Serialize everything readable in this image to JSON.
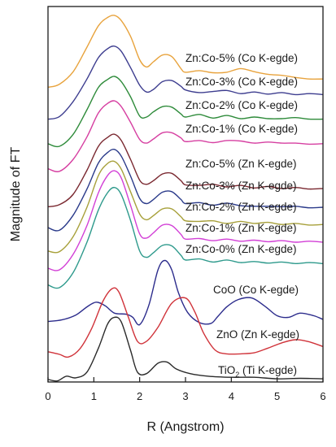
{
  "chart_data": {
    "type": "line",
    "xlabel": "R (Angstrom)",
    "ylabel": "Magnitude of FT",
    "xlim": [
      0,
      6
    ],
    "xticks": [
      "0",
      "1",
      "2",
      "3",
      "4",
      "5",
      "6"
    ],
    "grid": false,
    "legend": "labels placed next to each curve",
    "series": [
      {
        "name": "Zn:Co-5% (Co K-egde)",
        "color": "#e8a33d",
        "x": [
          0.0,
          0.25,
          0.55,
          0.85,
          1.1,
          1.3,
          1.45,
          1.6,
          1.8,
          2.0,
          2.15,
          2.3,
          2.5,
          2.7,
          2.9,
          3.0,
          3.3,
          3.6,
          3.9,
          4.2,
          4.5,
          4.8,
          5.1,
          5.4,
          5.7,
          6.0
        ],
        "y": [
          56.5,
          57.1,
          59.5,
          64.2,
          68.3,
          69.9,
          70.3,
          69.3,
          66.3,
          61.8,
          60.4,
          61.4,
          62.7,
          62.4,
          60.1,
          59.4,
          59.7,
          59.3,
          59.4,
          60.1,
          59.5,
          59.0,
          58.8,
          58.4,
          58.1,
          58.1
        ]
      },
      {
        "name": "Zn:Co-3% (Co K-egde)",
        "color": "#3d3d8f",
        "x": [
          0.0,
          0.25,
          0.55,
          0.85,
          1.1,
          1.3,
          1.45,
          1.6,
          1.8,
          2.0,
          2.15,
          2.3,
          2.5,
          2.7,
          2.9,
          3.0,
          3.3,
          3.6,
          3.9,
          4.2,
          4.5,
          4.8,
          5.1,
          5.4,
          5.7,
          6.0
        ],
        "y": [
          50.4,
          50.9,
          53.8,
          58.1,
          62.2,
          63.9,
          64.4,
          63.4,
          60.3,
          56.9,
          55.6,
          56.1,
          57.6,
          57.8,
          56.7,
          56.0,
          55.5,
          55.7,
          55.9,
          55.3,
          55.6,
          55.2,
          55.5,
          55.1,
          55.3,
          55.1
        ]
      },
      {
        "name": "Zn:Co-2% (Co K-egde)",
        "color": "#2e8b3a",
        "x": [
          0.0,
          0.25,
          0.55,
          0.85,
          1.1,
          1.3,
          1.45,
          1.6,
          1.8,
          2.0,
          2.15,
          2.3,
          2.5,
          2.7,
          2.9,
          3.0,
          3.3,
          3.6,
          3.9,
          4.2,
          4.5,
          4.8,
          5.1,
          5.4,
          5.7,
          6.0
        ],
        "y": [
          45.7,
          45.2,
          47.5,
          52.2,
          56.5,
          58.0,
          58.6,
          57.6,
          54.7,
          51.0,
          50.8,
          51.8,
          52.8,
          52.7,
          51.4,
          50.8,
          51.3,
          50.6,
          51.1,
          50.5,
          50.8,
          50.5,
          50.5,
          50.7,
          50.4,
          50.4
        ]
      },
      {
        "name": "Zn:Co-1% (Co K-egde)",
        "color": "#d63fa1",
        "x": [
          0.0,
          0.25,
          0.55,
          0.85,
          1.1,
          1.3,
          1.45,
          1.6,
          1.8,
          2.0,
          2.15,
          2.3,
          2.5,
          2.7,
          2.9,
          3.0,
          3.3,
          3.6,
          3.9,
          4.2,
          4.5,
          4.8,
          5.1,
          5.4,
          5.7,
          6.0
        ],
        "y": [
          40.9,
          40.4,
          42.7,
          47.0,
          51.6,
          53.4,
          53.9,
          52.8,
          49.8,
          46.5,
          45.8,
          46.6,
          47.8,
          47.8,
          46.8,
          46.1,
          46.3,
          45.9,
          46.3,
          46.2,
          45.8,
          46.0,
          45.8,
          45.8,
          45.6,
          45.7
        ]
      },
      {
        "name": "Zn:Co-5% (Zn K-egde)",
        "color": "#7a2830",
        "x": [
          0.0,
          0.25,
          0.55,
          0.85,
          1.1,
          1.3,
          1.45,
          1.6,
          1.8,
          2.0,
          2.15,
          2.3,
          2.5,
          2.7,
          2.9,
          3.0,
          3.3,
          3.6,
          3.9,
          4.2,
          4.5,
          4.8,
          5.1,
          5.4,
          5.7,
          6.0
        ],
        "y": [
          33.6,
          34.0,
          36.0,
          40.6,
          45.2,
          46.9,
          47.5,
          46.3,
          42.7,
          38.7,
          37.9,
          38.6,
          39.9,
          40.0,
          38.6,
          37.8,
          37.7,
          37.9,
          37.4,
          37.7,
          37.2,
          37.5,
          37.1,
          37.3,
          37.0,
          37.1
        ]
      },
      {
        "name": "Zn:Co-3% (Zn K-egde)",
        "color": "#2a3a8a",
        "x": [
          0.0,
          0.25,
          0.55,
          0.85,
          1.1,
          1.3,
          1.45,
          1.6,
          1.8,
          2.0,
          2.15,
          2.3,
          2.5,
          2.7,
          2.9,
          3.0,
          3.3,
          3.6,
          3.9,
          4.2,
          4.5,
          4.8,
          5.1,
          5.4,
          5.7,
          6.0
        ],
        "y": [
          29.6,
          29.1,
          32.0,
          37.0,
          42.0,
          44.0,
          44.6,
          43.3,
          39.5,
          35.2,
          34.2,
          35.0,
          36.4,
          36.5,
          35.0,
          34.2,
          34.4,
          33.9,
          34.3,
          33.8,
          33.7,
          33.7,
          33.6,
          33.7,
          33.4,
          33.5
        ]
      },
      {
        "name": "Zn:Co-2% (Zn K-egde)",
        "color": "#a7a03a",
        "x": [
          0.0,
          0.25,
          0.55,
          0.85,
          1.1,
          1.3,
          1.45,
          1.6,
          1.8,
          2.0,
          2.15,
          2.3,
          2.5,
          2.7,
          2.9,
          3.0,
          3.3,
          3.6,
          3.9,
          4.2,
          4.5,
          4.8,
          5.1,
          5.4,
          5.7,
          6.0
        ],
        "y": [
          25.1,
          25.0,
          27.9,
          33.5,
          39.6,
          41.9,
          42.3,
          40.8,
          36.5,
          32.2,
          31.1,
          31.9,
          33.2,
          33.2,
          31.7,
          30.9,
          30.8,
          30.9,
          30.4,
          30.8,
          30.4,
          30.6,
          30.2,
          30.4,
          30.1,
          30.2
        ]
      },
      {
        "name": "Zn:Co-1% (Zn K-egde)",
        "color": "#d23fd6",
        "x": [
          0.0,
          0.25,
          0.55,
          0.85,
          1.1,
          1.3,
          1.45,
          1.6,
          1.8,
          2.0,
          2.15,
          2.3,
          2.5,
          2.7,
          2.9,
          3.0,
          3.3,
          3.6,
          3.9,
          4.2,
          4.5,
          4.8,
          5.1,
          5.4,
          5.7,
          6.0
        ],
        "y": [
          21.8,
          21.5,
          24.5,
          30.0,
          36.3,
          39.6,
          40.5,
          39.1,
          33.9,
          28.4,
          27.6,
          28.6,
          30.1,
          30.0,
          28.3,
          27.4,
          27.5,
          27.1,
          27.4,
          27.0,
          27.2,
          26.9,
          27.1,
          26.8,
          27.0,
          26.8
        ]
      },
      {
        "name": "Zn:Co-0% (Zn K-egde)",
        "color": "#2e9a8c",
        "x": [
          0.0,
          0.25,
          0.55,
          0.85,
          1.1,
          1.3,
          1.45,
          1.6,
          1.8,
          2.0,
          2.15,
          2.3,
          2.5,
          2.7,
          2.9,
          3.0,
          3.3,
          3.6,
          3.9,
          4.2,
          4.5,
          4.8,
          5.1,
          5.4,
          5.7,
          6.0
        ],
        "y": [
          18.6,
          18.1,
          21.0,
          26.8,
          33.0,
          36.3,
          37.3,
          35.9,
          31.0,
          25.1,
          23.9,
          24.8,
          26.2,
          26.1,
          24.3,
          23.4,
          23.6,
          23.0,
          23.4,
          22.9,
          23.1,
          22.8,
          23.0,
          22.7,
          22.9,
          22.7
        ]
      },
      {
        "name": "CoO (Co K-egde)",
        "color": "#2c2c8c",
        "x": [
          0.0,
          0.3,
          0.6,
          0.85,
          1.05,
          1.25,
          1.45,
          1.7,
          1.85,
          2.0,
          2.2,
          2.4,
          2.55,
          2.7,
          2.85,
          3.05,
          3.3,
          3.55,
          3.7,
          3.9,
          4.15,
          4.45,
          4.75,
          5.0,
          5.25,
          5.5,
          5.8,
          6.0
        ],
        "y": [
          11.6,
          11.9,
          12.8,
          14.4,
          15.3,
          14.6,
          13.2,
          13.0,
          12.4,
          11.0,
          14.7,
          21.5,
          23.3,
          21.5,
          17.0,
          13.3,
          11.4,
          11.2,
          12.5,
          14.4,
          15.8,
          16.1,
          14.4,
          12.7,
          12.4,
          13.2,
          12.7,
          12.0
        ]
      },
      {
        "name": "ZnO (Zn K-egde)",
        "color": "#d0333a",
        "x": [
          0.0,
          0.25,
          0.45,
          0.7,
          0.95,
          1.2,
          1.4,
          1.55,
          1.75,
          1.95,
          2.15,
          2.4,
          2.7,
          3.0,
          3.2,
          3.4,
          3.65,
          3.9,
          4.2,
          4.5,
          4.8,
          5.1,
          5.4,
          5.7,
          6.0
        ],
        "y": [
          5.8,
          5.3,
          4.8,
          6.4,
          10.2,
          15.5,
          17.9,
          17.2,
          12.5,
          7.8,
          7.8,
          10.5,
          15.1,
          16.1,
          13.5,
          9.3,
          6.1,
          5.4,
          5.4,
          5.6,
          6.5,
          7.5,
          8.1,
          7.7,
          6.8
        ]
      },
      {
        "name": "TiO2 (Ti K-egde)",
        "color": "#2a2a2a",
        "x": [
          0.0,
          0.2,
          0.4,
          0.6,
          0.85,
          1.1,
          1.3,
          1.45,
          1.6,
          1.8,
          1.95,
          2.15,
          2.4,
          2.6,
          2.8,
          3.1,
          3.5,
          4.0,
          4.5,
          5.0,
          5.5,
          6.0
        ],
        "y": [
          0.5,
          0.2,
          1.1,
          0.8,
          1.9,
          6.5,
          11.1,
          12.4,
          11.5,
          6.1,
          1.9,
          1.6,
          3.6,
          3.8,
          2.5,
          1.6,
          1.1,
          0.9,
          0.9,
          0.6,
          0.7,
          0.6
        ]
      }
    ],
    "labels": [
      {
        "text": "Zn:Co-5% (Co K-egde)"
      },
      {
        "text": "Zn:Co-3% (Co K-egde)"
      },
      {
        "text": "Zn:Co-2% (Co K-egde)"
      },
      {
        "text": "Zn:Co-1% (Co K-egde)"
      },
      {
        "text": "Zn:Co-5% (Zn K-egde)"
      },
      {
        "text": "Zn:Co-3% (Zn K-egde)"
      },
      {
        "text": "Zn:Co-2% (Zn K-egde)"
      },
      {
        "text": "Zn:Co-1% (Zn K-egde)"
      },
      {
        "text": "Zn:Co-0% (Zn K-egde)"
      },
      {
        "text": "CoO (Co K-egde)"
      },
      {
        "text": "ZnO (Zn K-egde)"
      },
      {
        "text": "TiO",
        "sub": "2",
        "suffix": " (Ti K-egde)"
      }
    ]
  }
}
